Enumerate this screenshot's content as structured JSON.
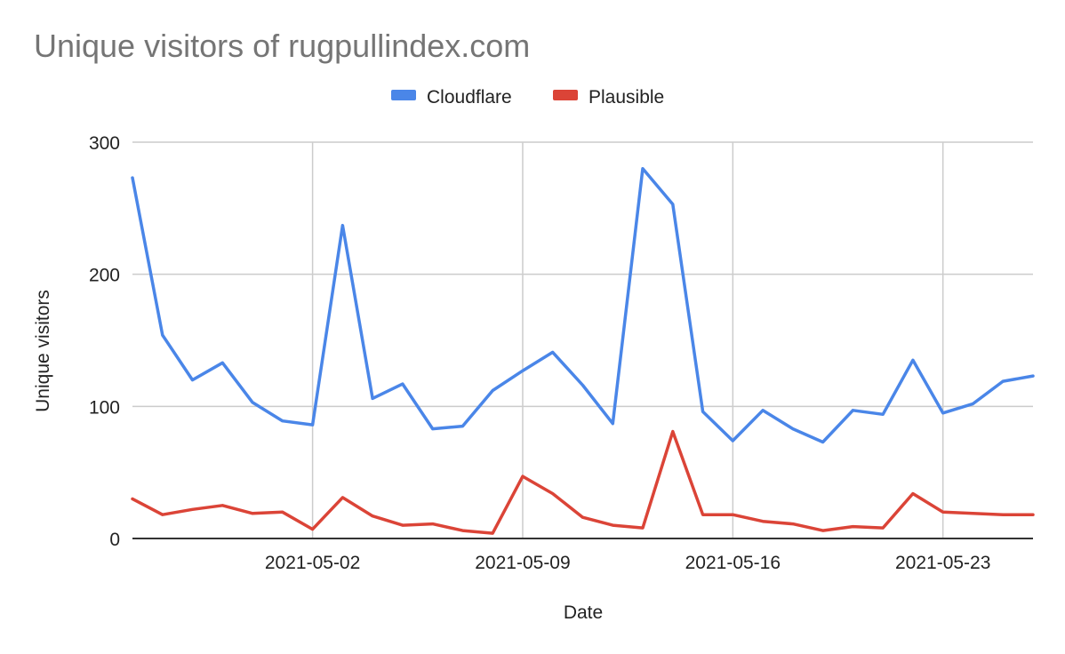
{
  "chart_data": {
    "type": "line",
    "title": "Unique visitors of rugpullindex.com",
    "xlabel": "Date",
    "ylabel": "Unique visitors",
    "ylim": [
      0,
      300
    ],
    "yticks": [
      0,
      100,
      200,
      300
    ],
    "xlim": [
      "2021-04-26",
      "2021-05-26"
    ],
    "xticks": [
      "2021-05-02",
      "2021-05-09",
      "2021-05-16",
      "2021-05-23"
    ],
    "grid": true,
    "legend_position": "top-center",
    "x": [
      "2021-04-26",
      "2021-04-27",
      "2021-04-28",
      "2021-04-29",
      "2021-04-30",
      "2021-05-01",
      "2021-05-02",
      "2021-05-03",
      "2021-05-04",
      "2021-05-05",
      "2021-05-06",
      "2021-05-07",
      "2021-05-08",
      "2021-05-09",
      "2021-05-10",
      "2021-05-11",
      "2021-05-12",
      "2021-05-13",
      "2021-05-14",
      "2021-05-15",
      "2021-05-16",
      "2021-05-17",
      "2021-05-18",
      "2021-05-19",
      "2021-05-20",
      "2021-05-21",
      "2021-05-22",
      "2021-05-23",
      "2021-05-24",
      "2021-05-25",
      "2021-05-26"
    ],
    "series": [
      {
        "name": "Cloudflare",
        "color": "#4a86e8",
        "values": [
          273,
          154,
          120,
          133,
          103,
          89,
          86,
          237,
          106,
          117,
          83,
          85,
          112,
          127,
          141,
          116,
          87,
          280,
          253,
          96,
          74,
          97,
          83,
          73,
          97,
          94,
          135,
          95,
          102,
          119,
          123
        ]
      },
      {
        "name": "Plausible",
        "color": "#db4437",
        "values": [
          30,
          18,
          22,
          25,
          19,
          20,
          7,
          31,
          17,
          10,
          11,
          6,
          4,
          47,
          34,
          16,
          10,
          8,
          81,
          18,
          18,
          13,
          11,
          6,
          9,
          8,
          34,
          20,
          19,
          18,
          18
        ]
      }
    ]
  }
}
